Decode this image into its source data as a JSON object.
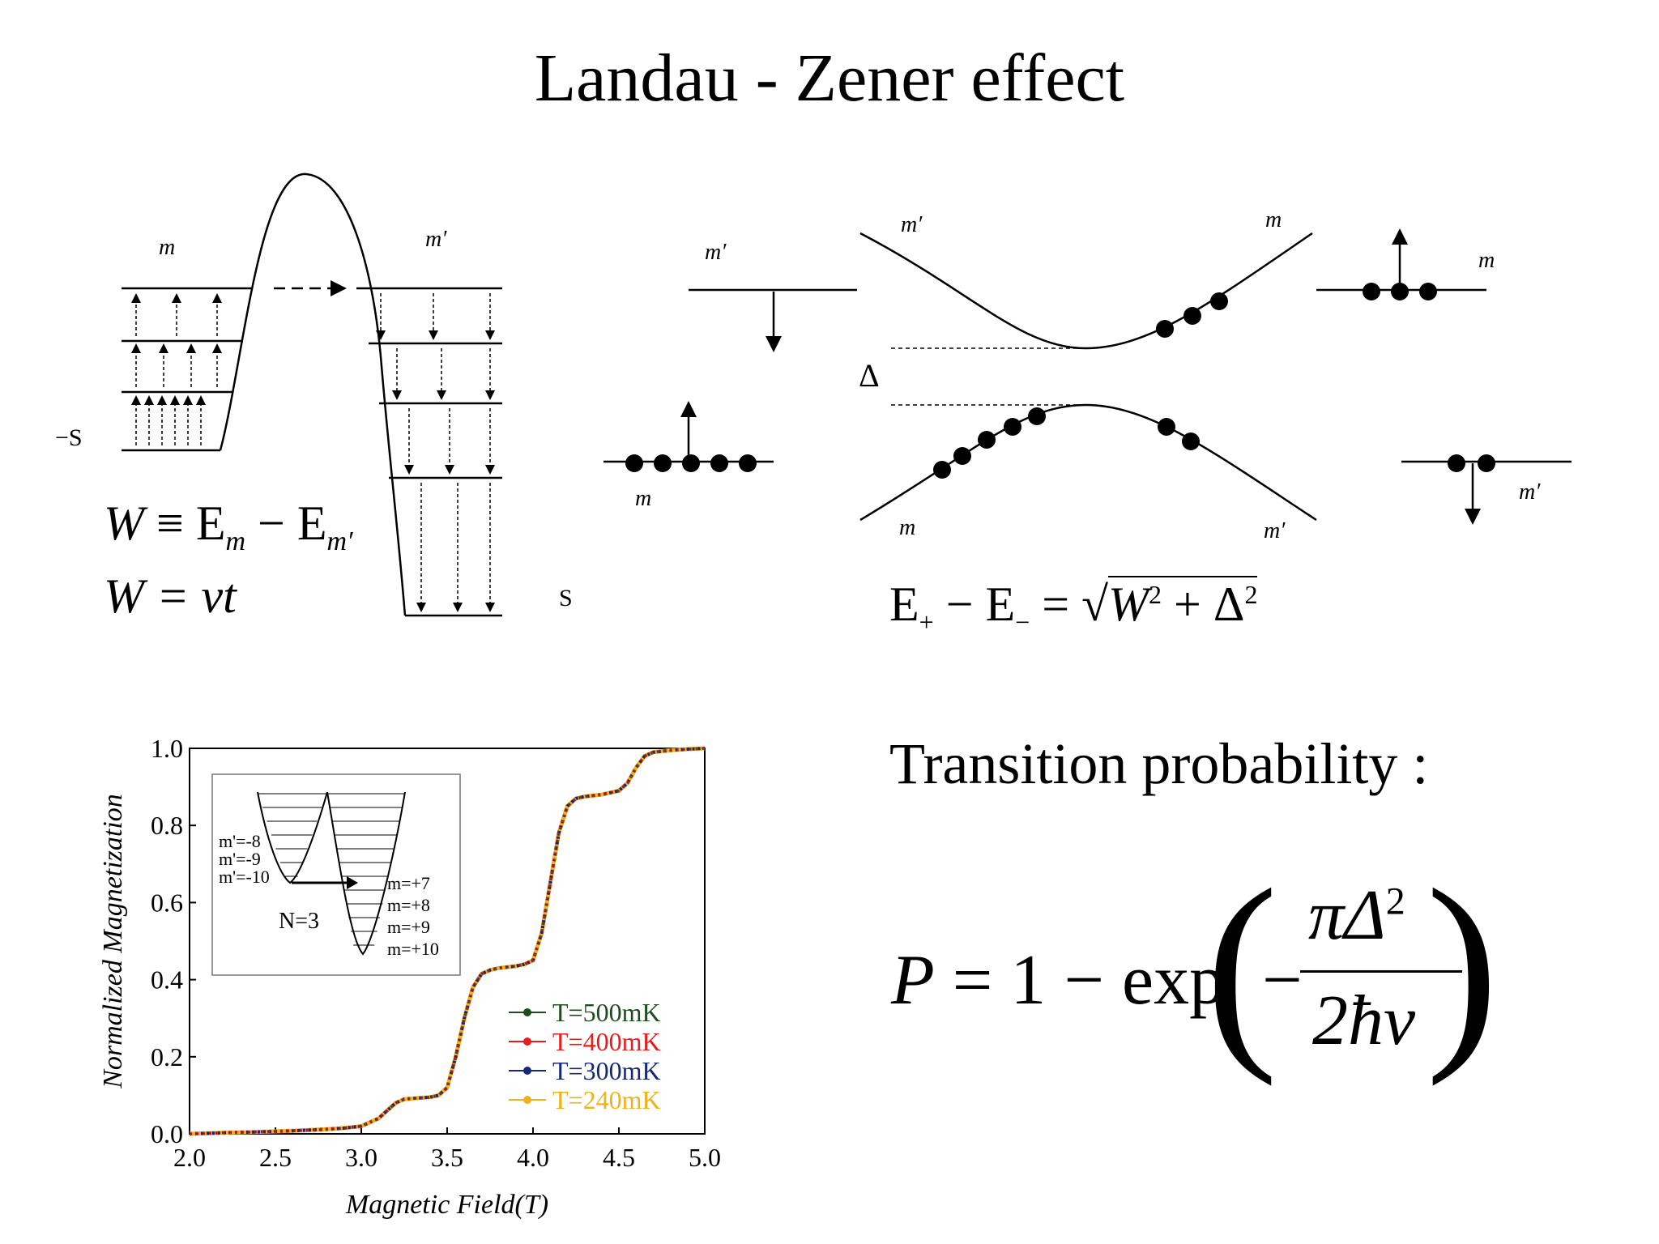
{
  "title": "Landau - Zener effect",
  "well_diagram": {
    "left_label": "m",
    "right_label": "m′",
    "left_end": "−S",
    "right_end": "S",
    "eq1": "W ≡ E",
    "eq1_sub1": "m",
    "eq1_mid": " − E",
    "eq1_sub2": "m′",
    "eq2": "W = vt"
  },
  "crossing_diagram": {
    "left_top_label": "m′",
    "left_bottom_label": "m",
    "upper_left_label": "m′",
    "upper_right_label": "m",
    "lower_left_label": "m",
    "lower_right_label": "m′",
    "right_top_label": "m",
    "right_bottom_label": "m′",
    "gap_label": "Δ",
    "energy_eq_lhs": "E",
    "energy_eq_sub_plus": "+",
    "energy_eq_mid": " − E",
    "energy_eq_sub_minus": "−",
    "energy_eq_eq": " = ",
    "energy_eq_rad": "W",
    "energy_eq_sup2a": "2",
    "energy_eq_plus": " + Δ",
    "energy_eq_sup2b": "2"
  },
  "transition": {
    "heading": "Transition probability :",
    "formula_lhs": "P = 1 − exp",
    "minus": "−",
    "numerator": "πΔ",
    "numerator_sup": "2",
    "denominator": "2ħv"
  },
  "chart_data": {
    "type": "line",
    "xlabel": "Magnetic Field(T)",
    "ylabel": "Normalized Magnetization",
    "xlim": [
      2.0,
      5.0
    ],
    "ylim": [
      0.0,
      1.0
    ],
    "xticks": [
      "2.0",
      "2.5",
      "3.0",
      "3.5",
      "4.0",
      "4.5",
      "5.0"
    ],
    "yticks": [
      "0.0",
      "0.2",
      "0.4",
      "0.6",
      "0.8",
      "1.0"
    ],
    "legend_position": "bottom-right",
    "series": [
      {
        "name": "T=500mK",
        "color": "#1d4d1d"
      },
      {
        "name": "T=400mK",
        "color": "#e81c1c"
      },
      {
        "name": "T=300mK",
        "color": "#16277a"
      },
      {
        "name": "T=240mK",
        "color": "#f0b21a"
      }
    ],
    "x": [
      2.0,
      2.2,
      2.4,
      2.6,
      2.8,
      2.9,
      3.0,
      3.1,
      3.15,
      3.2,
      3.25,
      3.3,
      3.4,
      3.45,
      3.5,
      3.55,
      3.6,
      3.65,
      3.7,
      3.75,
      3.8,
      3.9,
      3.95,
      4.0,
      4.05,
      4.1,
      4.15,
      4.2,
      4.25,
      4.3,
      4.4,
      4.5,
      4.55,
      4.6,
      4.65,
      4.7,
      4.8,
      4.9,
      5.0
    ],
    "y": [
      0.0,
      0.003,
      0.005,
      0.008,
      0.012,
      0.015,
      0.02,
      0.04,
      0.06,
      0.08,
      0.09,
      0.092,
      0.095,
      0.1,
      0.12,
      0.2,
      0.3,
      0.38,
      0.415,
      0.425,
      0.43,
      0.435,
      0.44,
      0.45,
      0.52,
      0.65,
      0.78,
      0.85,
      0.87,
      0.875,
      0.88,
      0.89,
      0.91,
      0.95,
      0.98,
      0.99,
      0.995,
      0.998,
      1.0
    ],
    "inset": {
      "labels_left": [
        "m'=-8",
        "m'=-9",
        "m'=-10"
      ],
      "labels_right": [
        "m=+7",
        "m=+8",
        "m=+9",
        "m=+10"
      ],
      "n_label": "N=3"
    }
  }
}
